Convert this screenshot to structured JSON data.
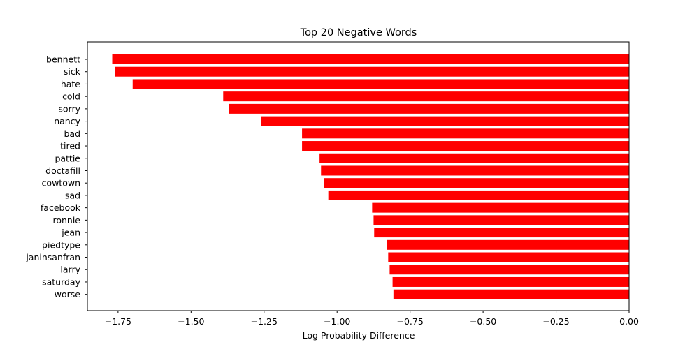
{
  "chart_data": {
    "type": "bar",
    "orientation": "horizontal",
    "title": "Top 20 Negative Words",
    "xlabel": "Log Probability Difference",
    "ylabel": "",
    "xlim": [
      -1.855,
      0.0
    ],
    "xticks": [
      -1.75,
      -1.5,
      -1.25,
      -1.0,
      -0.75,
      -0.5,
      -0.25,
      0.0
    ],
    "xtick_labels": [
      "−1.75",
      "−1.50",
      "−1.25",
      "−1.00",
      "−0.75",
      "−0.50",
      "−0.25",
      "0.00"
    ],
    "bar_color": "#ff0000",
    "categories": [
      "bennett",
      "sick",
      "hate",
      "cold",
      "sorry",
      "nancy",
      "bad",
      "tired",
      "pattie",
      "doctafill",
      "cowtown",
      "sad",
      "facebook",
      "ronnie",
      "jean",
      "piedtype",
      "janinsanfran",
      "larry",
      "saturday",
      "worse"
    ],
    "values": [
      -1.77,
      -1.76,
      -1.7,
      -1.39,
      -1.37,
      -1.26,
      -1.12,
      -1.12,
      -1.06,
      -1.055,
      -1.045,
      -1.03,
      -0.88,
      -0.875,
      -0.873,
      -0.83,
      -0.825,
      -0.82,
      -0.81,
      -0.807
    ]
  }
}
